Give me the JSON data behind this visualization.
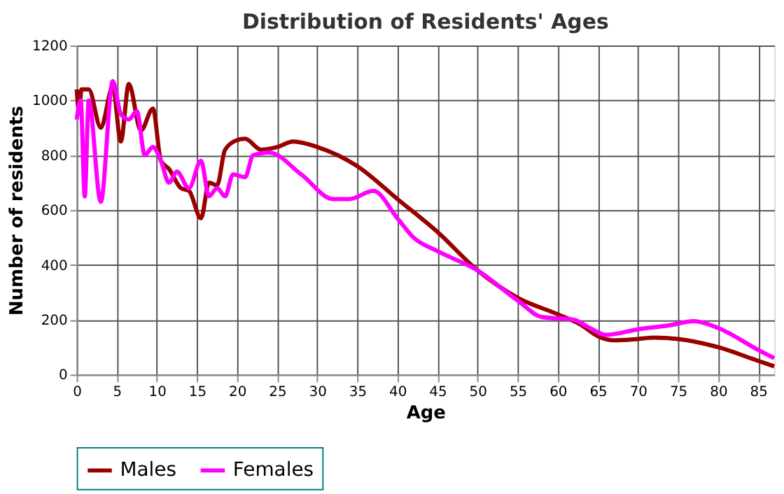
{
  "chart_data": {
    "type": "line",
    "title": "Distribution of Residents' Ages",
    "xlabel": "Age",
    "ylabel": "Number of residents",
    "xlim": [
      0,
      87
    ],
    "xticks": [
      0,
      5,
      10,
      15,
      20,
      25,
      30,
      35,
      40,
      45,
      50,
      55,
      60,
      65,
      70,
      75,
      80,
      85
    ],
    "ylim": [
      0,
      1200
    ],
    "yticks": [
      0,
      200,
      400,
      600,
      800,
      1000,
      1200
    ],
    "grid": true,
    "legend": "bottom",
    "line_style": "solid",
    "marker": "none",
    "series": [
      {
        "name": "Males",
        "color": "#990000",
        "x": [
          0,
          0.3,
          0.6,
          1.5,
          3,
          4.5,
          5.5,
          6.5,
          8,
          9.5,
          10.5,
          11.5,
          13,
          14,
          15.5,
          16.5,
          17.5,
          18.5,
          20,
          21,
          23,
          25,
          27,
          30,
          35,
          40,
          45,
          50,
          55,
          60,
          63,
          65,
          67,
          70,
          72,
          75,
          80,
          85,
          87
        ],
        "values": [
          1040,
          960,
          1040,
          1040,
          900,
          1050,
          850,
          1060,
          890,
          970,
          780,
          750,
          680,
          670,
          570,
          700,
          690,
          820,
          855,
          860,
          820,
          830,
          850,
          830,
          760,
          640,
          520,
          380,
          280,
          220,
          180,
          140,
          125,
          130,
          135,
          130,
          100,
          50,
          30
        ]
      },
      {
        "name": "Females",
        "color": "#ff00ff",
        "x": [
          0,
          0.5,
          1,
          1.5,
          3,
          4.5,
          5.5,
          6.5,
          7.5,
          8.5,
          9.5,
          10.5,
          11.5,
          12.5,
          14,
          15.5,
          16.5,
          17.5,
          18.5,
          19.5,
          21,
          22,
          24,
          28,
          32,
          34,
          37,
          40,
          42,
          45,
          50,
          55,
          58,
          62,
          64,
          66,
          70,
          74,
          77,
          80,
          85,
          87
        ],
        "values": [
          930,
          1000,
          650,
          1000,
          630,
          1070,
          950,
          930,
          960,
          800,
          830,
          780,
          700,
          740,
          680,
          780,
          650,
          680,
          650,
          730,
          720,
          800,
          810,
          730,
          640,
          640,
          670,
          570,
          500,
          450,
          380,
          270,
          210,
          200,
          170,
          145,
          165,
          180,
          195,
          170,
          90,
          60
        ]
      }
    ]
  }
}
